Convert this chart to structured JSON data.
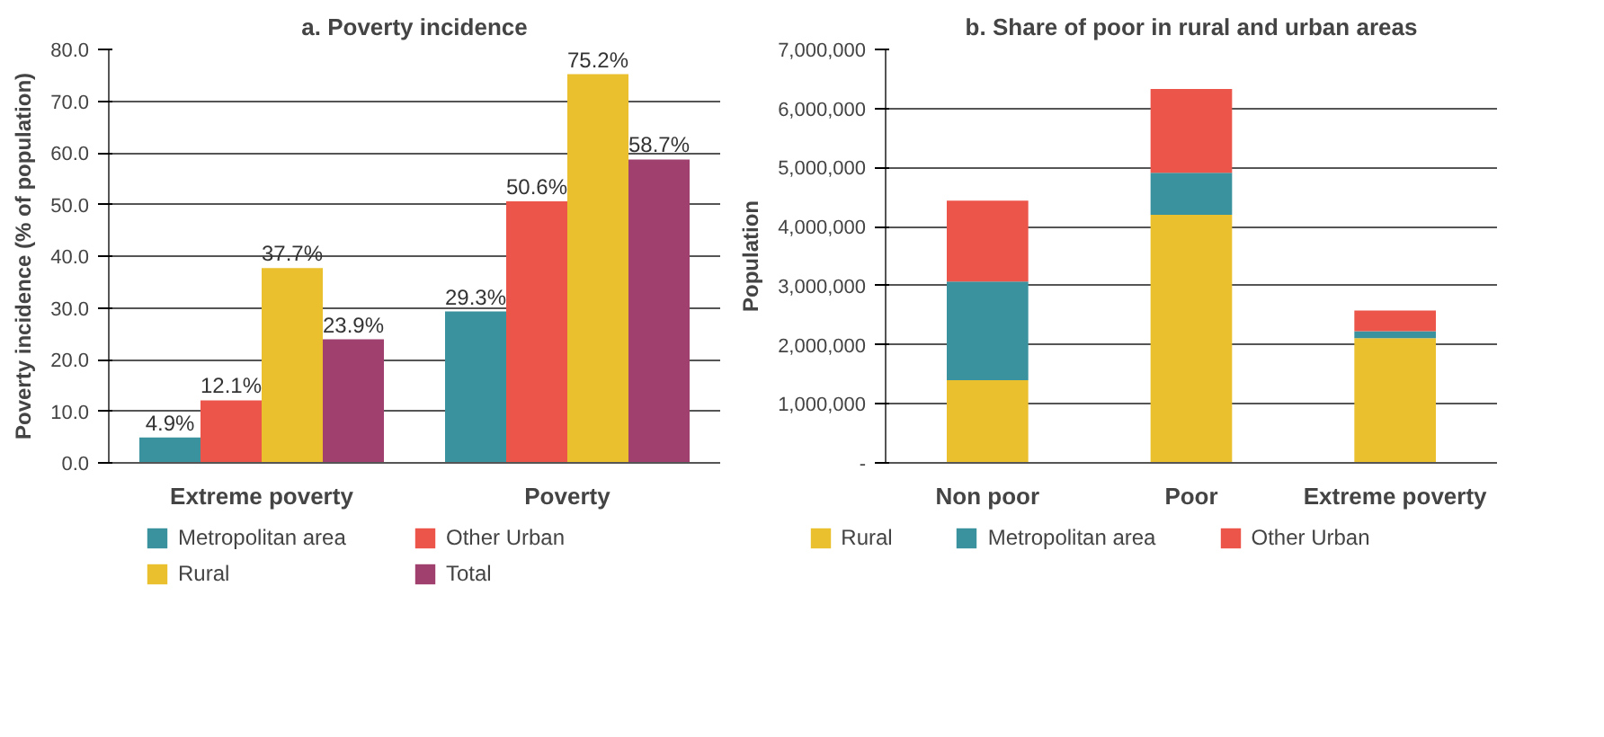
{
  "chart_data": [
    {
      "type": "bar",
      "title": "a. Poverty incidence",
      "ylabel": "Poverty incidence (% of population)",
      "categories": [
        "Extreme poverty",
        "Poverty"
      ],
      "series": [
        {
          "name": "Metropolitan area",
          "color": "#3a929e",
          "values": [
            4.9,
            29.3
          ],
          "value_labels": [
            "4.9%",
            "29.3%"
          ]
        },
        {
          "name": "Other Urban",
          "color": "#ec554a",
          "values": [
            12.1,
            50.6
          ],
          "value_labels": [
            "12.1%",
            "50.6%"
          ]
        },
        {
          "name": "Rural",
          "color": "#ebc02e",
          "values": [
            37.7,
            75.2
          ],
          "value_labels": [
            "37.7%",
            "75.2%"
          ]
        },
        {
          "name": "Total",
          "color": "#a0406e",
          "values": [
            23.9,
            58.7
          ],
          "value_labels": [
            "23.9%",
            "58.7%"
          ]
        }
      ],
      "ylim": [
        0,
        80
      ],
      "yticks": [
        {
          "value": 0,
          "label": "0.0"
        },
        {
          "value": 10,
          "label": "10.0"
        },
        {
          "value": 20,
          "label": "20.0"
        },
        {
          "value": 30,
          "label": "30.0"
        },
        {
          "value": 40,
          "label": "40.0"
        },
        {
          "value": 50,
          "label": "50.0"
        },
        {
          "value": 60,
          "label": "60.0"
        },
        {
          "value": 70,
          "label": "70.0"
        },
        {
          "value": 80,
          "label": "80.0"
        }
      ],
      "grid": "y",
      "legend": "bottom"
    },
    {
      "type": "bar",
      "stacked": true,
      "title": "b. Share of poor in rural and urban areas",
      "ylabel": "Population",
      "categories": [
        "Non poor",
        "Poor",
        "Extreme poverty"
      ],
      "series": [
        {
          "name": "Rural",
          "color": "#ebc02e",
          "values": [
            1400000,
            4200000,
            2110000
          ]
        },
        {
          "name": "Metropolitan area",
          "color": "#3a929e",
          "values": [
            1670000,
            710000,
            120000
          ]
        },
        {
          "name": "Other Urban",
          "color": "#ec554a",
          "values": [
            1370000,
            1420000,
            350000
          ]
        }
      ],
      "ylim": [
        0,
        7000000
      ],
      "yticks": [
        {
          "value": 0,
          "label": "-"
        },
        {
          "value": 1000000,
          "label": "1,000,000"
        },
        {
          "value": 2000000,
          "label": "2,000,000"
        },
        {
          "value": 3000000,
          "label": "3,000,000"
        },
        {
          "value": 4000000,
          "label": "4,000,000"
        },
        {
          "value": 5000000,
          "label": "5,000,000"
        },
        {
          "value": 6000000,
          "label": "6,000,000"
        },
        {
          "value": 7000000,
          "label": "7,000,000"
        }
      ],
      "grid": "y",
      "legend": "bottom"
    }
  ]
}
